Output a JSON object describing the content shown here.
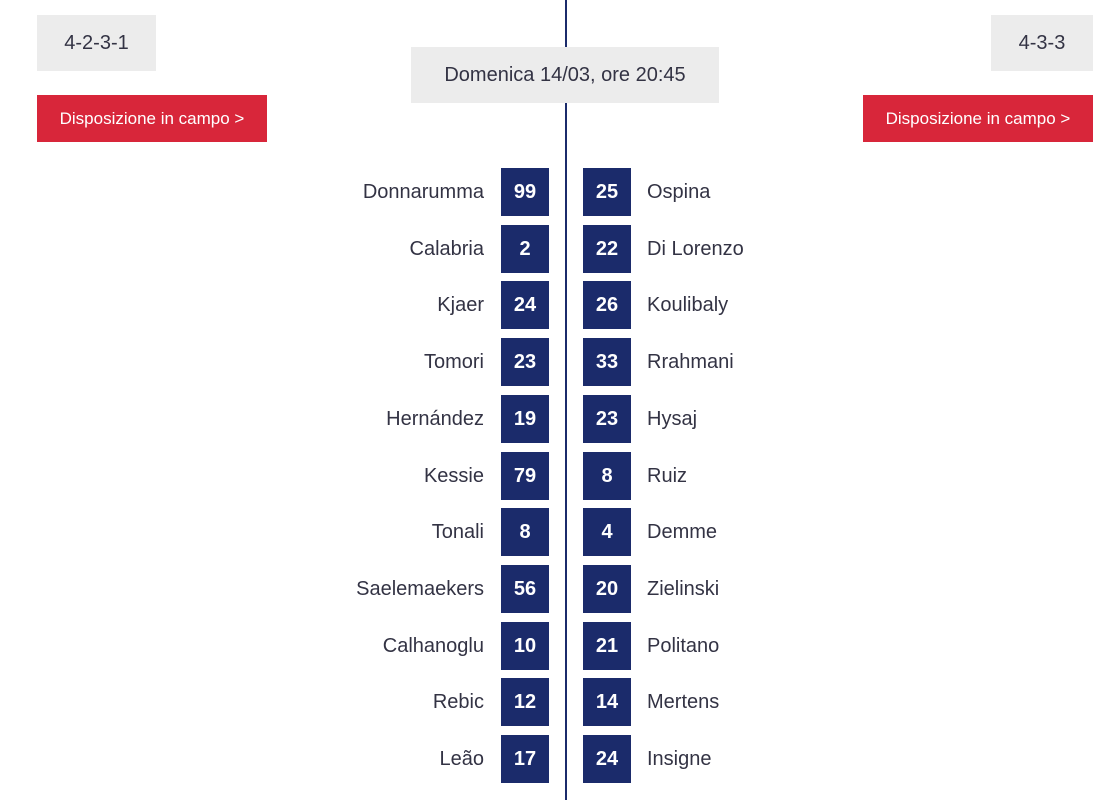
{
  "home": {
    "formation": "4-2-3-1",
    "lineup_button": "Disposizione in campo >",
    "players": [
      {
        "name": "Donnarumma",
        "number": "99"
      },
      {
        "name": "Calabria",
        "number": "2"
      },
      {
        "name": "Kjaer",
        "number": "24"
      },
      {
        "name": "Tomori",
        "number": "23"
      },
      {
        "name": "Hernández",
        "number": "19"
      },
      {
        "name": "Kessie",
        "number": "79"
      },
      {
        "name": "Tonali",
        "number": "8"
      },
      {
        "name": "Saelemaekers",
        "number": "56"
      },
      {
        "name": "Calhanoglu",
        "number": "10"
      },
      {
        "name": "Rebic",
        "number": "12"
      },
      {
        "name": "Leão",
        "number": "17"
      }
    ]
  },
  "away": {
    "formation": "4-3-3",
    "lineup_button": "Disposizione in campo >",
    "players": [
      {
        "name": "Ospina",
        "number": "25"
      },
      {
        "name": "Di Lorenzo",
        "number": "22"
      },
      {
        "name": "Koulibaly",
        "number": "26"
      },
      {
        "name": "Rrahmani",
        "number": "33"
      },
      {
        "name": "Hysaj",
        "number": "23"
      },
      {
        "name": "Ruiz",
        "number": "8"
      },
      {
        "name": "Demme",
        "number": "4"
      },
      {
        "name": "Zielinski",
        "number": "20"
      },
      {
        "name": "Politano",
        "number": "21"
      },
      {
        "name": "Mertens",
        "number": "14"
      },
      {
        "name": "Insigne",
        "number": "24"
      }
    ]
  },
  "match": {
    "datetime": "Domenica 14/03, ore 20:45"
  },
  "colors": {
    "accent_red": "#d8263a",
    "number_box": "#1b2b6b",
    "label_bg": "#ececec"
  }
}
